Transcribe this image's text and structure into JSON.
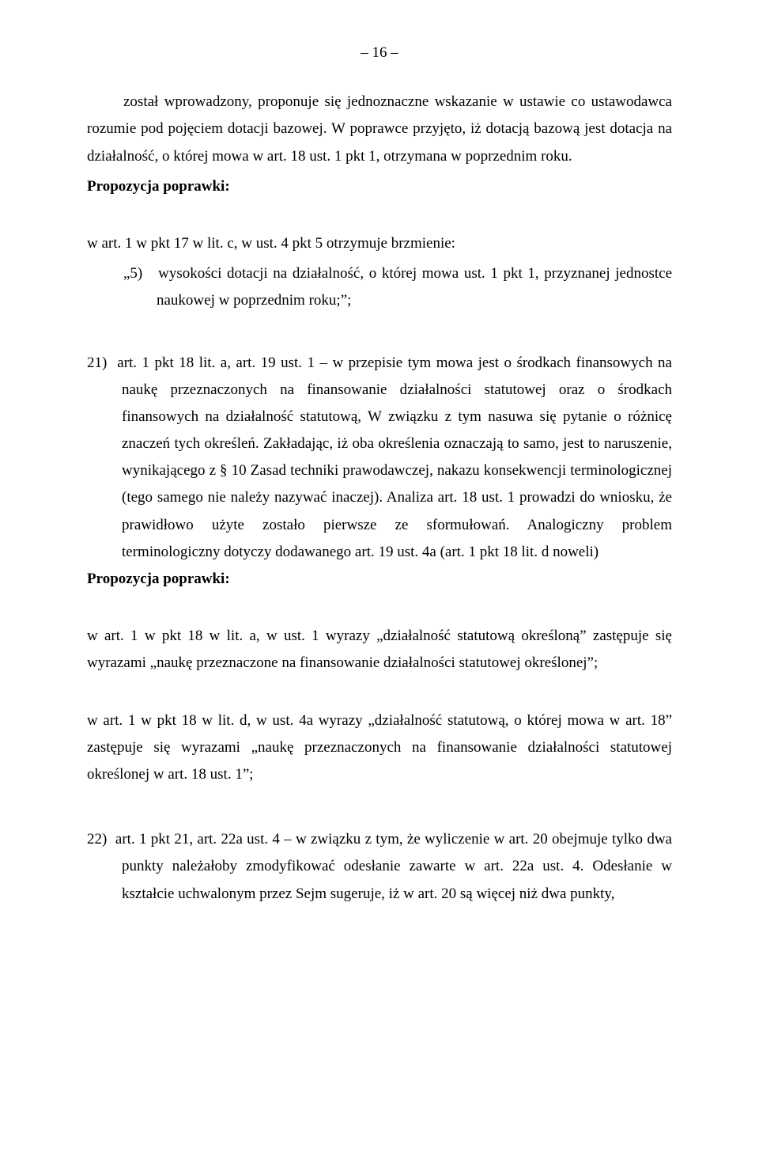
{
  "page_number": "– 16 –",
  "p1": "został wprowadzony, proponuje się jednoznaczne wskazanie w ustawie co ustawodawca rozumie pod pojęciem dotacji bazowej. W poprawce przyjęto, iż dotacją bazową jest dotacja na działalność, o której mowa w art. 18 ust. 1 pkt 1, otrzymana w poprzednim roku.",
  "label_prop": "Propozycja poprawki:",
  "p2_intro": "w art. 1 w pkt 17 w lit. c, w ust. 4 pkt 5 otrzymuje brzmienie:",
  "p2_quote": "„5)   wysokości dotacji na działalność, o której mowa ust. 1 pkt 1, przyznanej jednostce naukowej w poprzednim roku;”;",
  "n21_first": "21)  art. 1 pkt 18 lit. a, art. 19 ust. 1 – w przepisie tym mowa jest o środkach finansowych na naukę przeznaczonych na finansowanie działalności statutowej oraz o środkach finansowych na działalność statutową, W związku z tym nasuwa się pytanie o różnicę znaczeń tych określeń. Zakładając, iż oba określenia oznaczają to samo, jest to naruszenie, wynikającego z § 10 Zasad techniki prawodawczej, nakazu konsekwencji terminologicznej (tego samego nie należy nazywać inaczej). Analiza art. 18 ust. 1 prowadzi do wniosku, że prawidłowo użyte zostało pierwsze ze sformułowań. Analogiczny problem terminologiczny dotyczy dodawanego art. 19 ust. 4a (art. 1 pkt 18 lit. d noweli)",
  "p3": "w art. 1 w pkt 18 w lit. a, w ust. 1 wyrazy „działalność statutową określoną” zastępuje się wyrazami „naukę przeznaczone na finansowanie działalności statutowej określonej”;",
  "p4": "w art. 1 w pkt 18 w lit. d, w ust. 4a wyrazy „działalność statutową, o której mowa w art. 18” zastępuje się wyrazami „naukę przeznaczonych na finansowanie działalności statutowej określonej w art. 18 ust. 1”;",
  "n22_first": "22)  art. 1 pkt 21, art. 22a ust. 4 – w związku z tym, że wyliczenie w art. 20 obejmuje tylko dwa punkty należałoby zmodyfikować odesłanie zawarte w art. 22a ust. 4. Odesłanie w kształcie uchwalonym przez Sejm sugeruje, iż w art. 20 są więcej niż dwa punkty,"
}
